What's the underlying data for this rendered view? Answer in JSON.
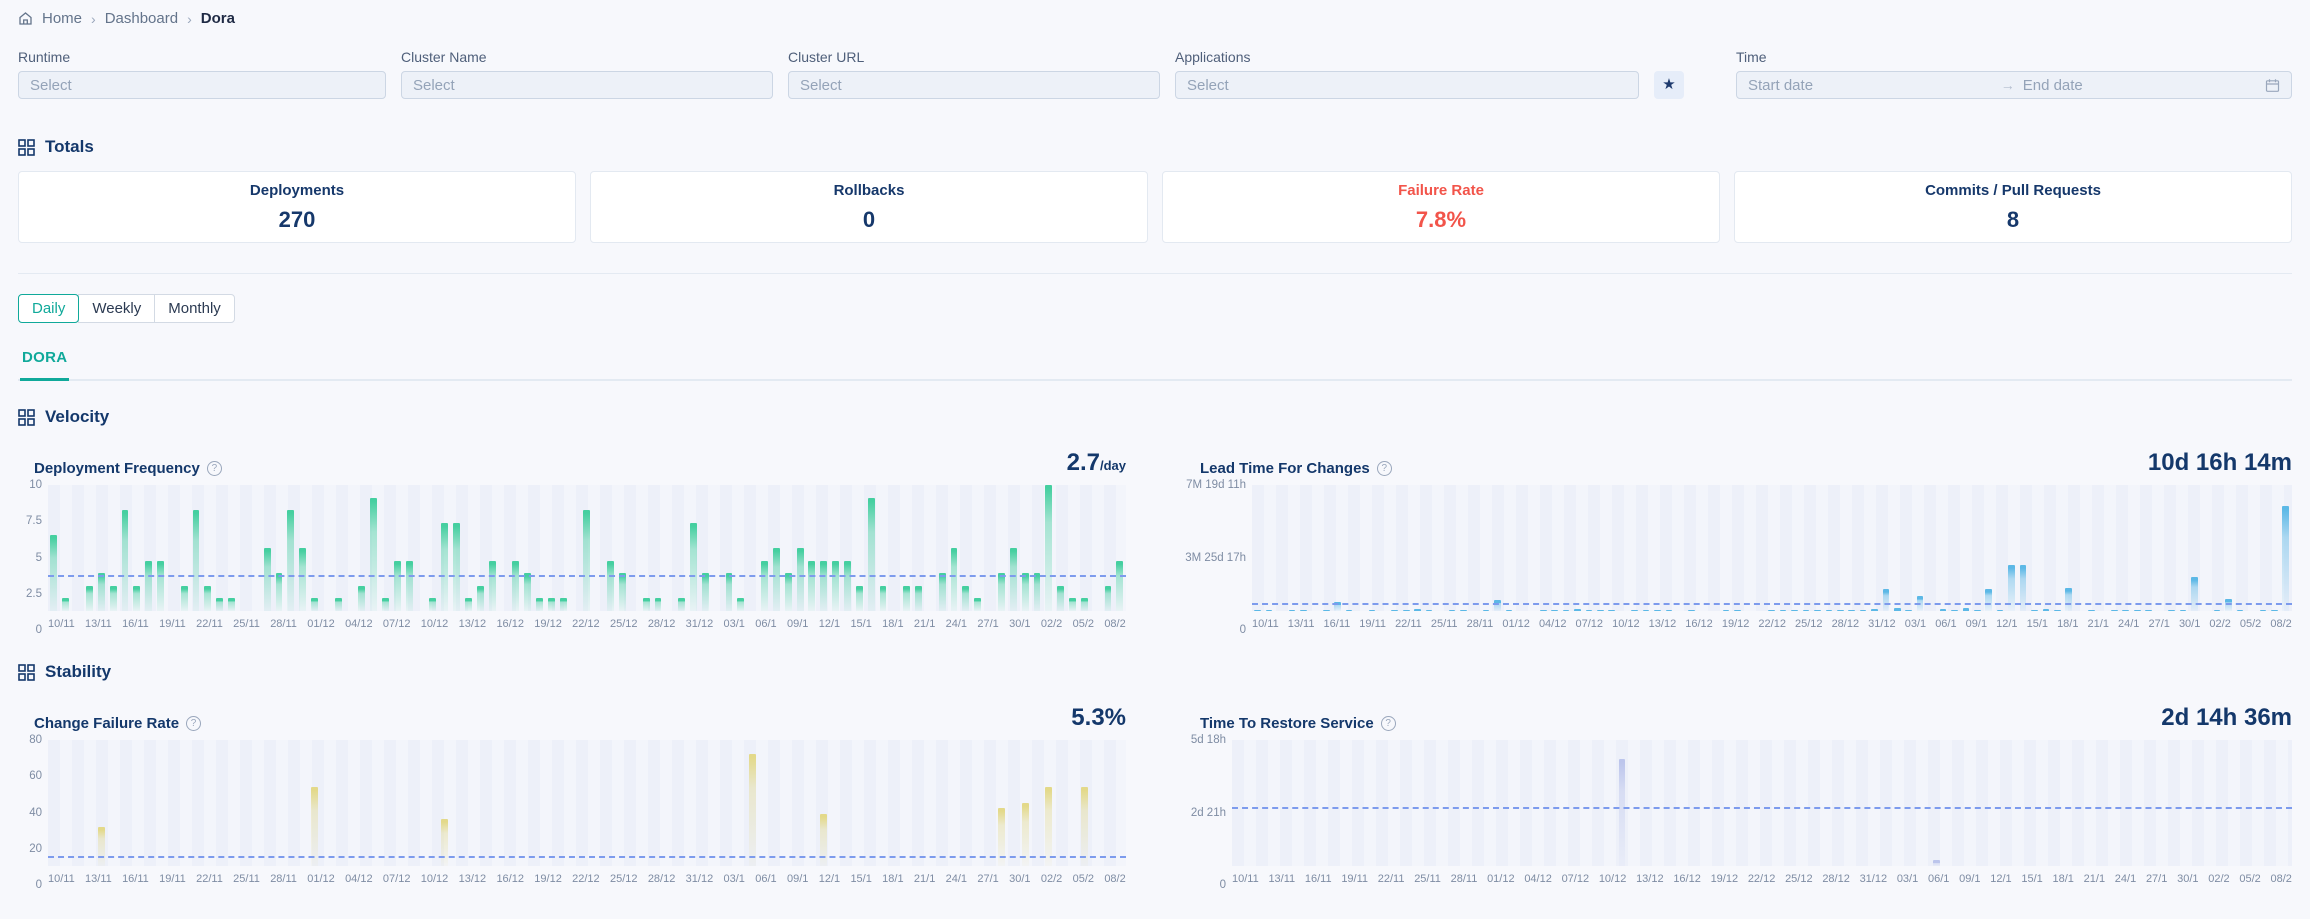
{
  "breadcrumb": {
    "home": "Home",
    "dashboard": "Dashboard",
    "current": "Dora"
  },
  "filters": {
    "runtime": {
      "label": "Runtime",
      "placeholder": "Select"
    },
    "cluster_name": {
      "label": "Cluster Name",
      "placeholder": "Select"
    },
    "cluster_url": {
      "label": "Cluster URL",
      "placeholder": "Select"
    },
    "applications": {
      "label": "Applications",
      "placeholder": "Select"
    },
    "time": {
      "label": "Time",
      "start_placeholder": "Start date",
      "end_placeholder": "End date"
    }
  },
  "icons": {
    "star": "★",
    "info": "?",
    "breadcrumb_sep": "›",
    "range_arrow": "→"
  },
  "totals": {
    "title": "Totals",
    "cards": [
      {
        "label": "Deployments",
        "value": "270",
        "color": "#16386b"
      },
      {
        "label": "Rollbacks",
        "value": "0",
        "color": "#16386b"
      },
      {
        "label": "Failure Rate",
        "value": "7.8%",
        "color": "#f2544a"
      },
      {
        "label": "Commits / Pull Requests",
        "value": "8",
        "color": "#16386b"
      }
    ]
  },
  "granularity": {
    "options": [
      "Daily",
      "Weekly",
      "Monthly"
    ],
    "active": "Daily"
  },
  "tabs": {
    "dora": "DORA"
  },
  "sections": {
    "velocity": "Velocity",
    "stability": "Stability"
  },
  "colors": {
    "accent_teal": "#10a99a",
    "navy": "#16386b",
    "red": "#f2544a",
    "avg_line": "#7d9bed",
    "page_bg": "#f7f8fc",
    "df_bar": "#45cfa0",
    "lt_bar": "#5cb8e6",
    "cfr_bar": "#e3d98a",
    "ttrs_bar": "#bcc5ec"
  },
  "chart_data": [
    {
      "id": "deployment-frequency",
      "type": "bar",
      "section": "Velocity",
      "title": "Deployment Frequency",
      "value": "2.7",
      "value_unit": "/day",
      "unit": "deployments/day",
      "ymax": 10,
      "avg": 2.7,
      "yticks": [
        {
          "label": "0",
          "v": 0
        },
        {
          "label": "2.5",
          "v": 2.5
        },
        {
          "label": "5",
          "v": 5
        },
        {
          "label": "7.5",
          "v": 7.5
        },
        {
          "label": "10",
          "v": 10
        }
      ],
      "bar_top": "#45cfa0",
      "bar_mid": "rgba(69,207,160,0.45)",
      "bar_bottom": "rgba(69,207,160,0.06)",
      "xlabels": [
        "10/11",
        "13/11",
        "16/11",
        "19/11",
        "22/11",
        "25/11",
        "28/11",
        "01/12",
        "04/12",
        "07/12",
        "10/12",
        "13/12",
        "16/12",
        "19/12",
        "22/12",
        "25/12",
        "28/12",
        "31/12",
        "03/1",
        "06/1",
        "09/1",
        "12/1",
        "15/1",
        "18/1",
        "21/1",
        "24/1",
        "27/1",
        "30/1",
        "02/2",
        "05/2",
        "08/2"
      ],
      "values": [
        6,
        1,
        0,
        2,
        3,
        2,
        8,
        2,
        4,
        4,
        0,
        2,
        8,
        2,
        1,
        1,
        0,
        0,
        5,
        3,
        8,
        5,
        1,
        0,
        1,
        0,
        2,
        9,
        1,
        4,
        4,
        0,
        1,
        7,
        7,
        1,
        2,
        4,
        0,
        4,
        3,
        1,
        1,
        1,
        0,
        8,
        0,
        4,
        3,
        0,
        1,
        1,
        0,
        1,
        7,
        3,
        0,
        3,
        1,
        0,
        4,
        5,
        3,
        5,
        4,
        4,
        4,
        4,
        2,
        9,
        2,
        0,
        2,
        2,
        0,
        3,
        5,
        2,
        1,
        0,
        3,
        5,
        3,
        3,
        10,
        2,
        1,
        1,
        0,
        2,
        4
      ]
    },
    {
      "id": "lead-time",
      "type": "bar",
      "section": "Velocity",
      "title": "Lead Time For Changes",
      "value": "10d 16h 14m",
      "value_unit": "",
      "unit": "days",
      "ymax": 232,
      "avg": 10.7,
      "yticks": [
        {
          "label": "0",
          "v": 0
        },
        {
          "label": "3M 25d 17h",
          "v": 116
        },
        {
          "label": "7M 19d 11h",
          "v": 232
        }
      ],
      "bar_top": "#5cb8e6",
      "bar_mid": "rgba(92,184,230,0.45)",
      "bar_bottom": "rgba(92,184,230,0.06)",
      "xlabels": [
        "10/11",
        "13/11",
        "16/11",
        "19/11",
        "22/11",
        "25/11",
        "28/11",
        "01/12",
        "04/12",
        "07/12",
        "10/12",
        "13/12",
        "16/12",
        "19/12",
        "22/12",
        "25/12",
        "28/12",
        "31/12",
        "03/1",
        "06/1",
        "09/1",
        "12/1",
        "15/1",
        "18/1",
        "21/1",
        "24/1",
        "27/1",
        "30/1",
        "02/2",
        "05/2",
        "08/2"
      ],
      "values": [
        2,
        1,
        0,
        1,
        1,
        0,
        2,
        17,
        1,
        0,
        1,
        0,
        1,
        2,
        3,
        1,
        0,
        1,
        1,
        0,
        1,
        20,
        2,
        0,
        0,
        1,
        1,
        1,
        4,
        1,
        1,
        2,
        0,
        1,
        1,
        1,
        1,
        0,
        1,
        0,
        0,
        1,
        1,
        0,
        0,
        1,
        2,
        1,
        1,
        1,
        2,
        2,
        1,
        1,
        3,
        41,
        5,
        1,
        27,
        0,
        3,
        2,
        5,
        1,
        40,
        1,
        84,
        84,
        1,
        4,
        1,
        43,
        0,
        1,
        0,
        1,
        1,
        1,
        1,
        0,
        1,
        1,
        63,
        0,
        1,
        23,
        1,
        0,
        1,
        1,
        194
      ]
    },
    {
      "id": "change-failure-rate",
      "type": "bar",
      "section": "Stability",
      "title": "Change Failure Rate",
      "value": "5.3%",
      "value_unit": "",
      "unit": "%",
      "ymax": 80,
      "avg": 5.3,
      "yticks": [
        {
          "label": "0",
          "v": 0
        },
        {
          "label": "20",
          "v": 20
        },
        {
          "label": "40",
          "v": 40
        },
        {
          "label": "60",
          "v": 60
        },
        {
          "label": "80",
          "v": 80
        }
      ],
      "bar_top": "#e3d98a",
      "bar_mid": "rgba(227,217,138,0.40)",
      "bar_bottom": "rgba(227,217,138,0.06)",
      "xlabels": [
        "10/11",
        "13/11",
        "16/11",
        "19/11",
        "22/11",
        "25/11",
        "28/11",
        "01/12",
        "04/12",
        "07/12",
        "10/12",
        "13/12",
        "16/12",
        "19/12",
        "22/12",
        "25/12",
        "28/12",
        "31/12",
        "03/1",
        "06/1",
        "09/1",
        "12/1",
        "15/1",
        "18/1",
        "21/1",
        "24/1",
        "27/1",
        "30/1",
        "02/2",
        "05/2",
        "08/2"
      ],
      "values": [
        0,
        0,
        0,
        0,
        25,
        0,
        0,
        0,
        0,
        0,
        0,
        0,
        0,
        0,
        0,
        0,
        0,
        0,
        0,
        0,
        0,
        0,
        50,
        0,
        0,
        0,
        0,
        0,
        0,
        0,
        0,
        0,
        0,
        30,
        0,
        0,
        0,
        0,
        0,
        0,
        0,
        0,
        0,
        0,
        0,
        0,
        0,
        0,
        0,
        0,
        0,
        0,
        0,
        0,
        0,
        0,
        0,
        0,
        0,
        71,
        0,
        0,
        0,
        0,
        0,
        33,
        0,
        0,
        0,
        0,
        0,
        0,
        0,
        0,
        0,
        0,
        0,
        0,
        0,
        0,
        37,
        0,
        40,
        0,
        50,
        0,
        0,
        50,
        0,
        0,
        0
      ]
    },
    {
      "id": "time-to-restore",
      "type": "bar",
      "section": "Stability",
      "title": "Time To Restore Service",
      "value": "2d 14h 36m",
      "value_unit": "",
      "unit": "hours",
      "ymax": 138,
      "avg": 62.6,
      "yticks": [
        {
          "label": "0",
          "v": 0
        },
        {
          "label": "2d 21h",
          "v": 69
        },
        {
          "label": "5d 18h",
          "v": 138
        }
      ],
      "bar_top": "#bcc5ec",
      "bar_mid": "rgba(188,197,236,0.45)",
      "bar_bottom": "rgba(188,197,236,0.08)",
      "xlabels": [
        "10/11",
        "13/11",
        "16/11",
        "19/11",
        "22/11",
        "25/11",
        "28/11",
        "01/12",
        "04/12",
        "07/12",
        "10/12",
        "13/12",
        "16/12",
        "19/12",
        "22/12",
        "25/12",
        "28/12",
        "31/12",
        "03/1",
        "06/1",
        "09/1",
        "12/1",
        "15/1",
        "18/1",
        "21/1",
        "24/1",
        "27/1",
        "30/1",
        "02/2",
        "05/2",
        "08/2"
      ],
      "values": [
        0,
        0,
        0,
        0,
        0,
        0,
        0,
        0,
        0,
        0,
        0,
        0,
        0,
        0,
        0,
        0,
        0,
        0,
        0,
        0,
        0,
        0,
        0,
        0,
        0,
        0,
        0,
        0,
        0,
        0,
        0,
        0,
        0,
        117,
        0,
        0,
        0,
        0,
        0,
        0,
        0,
        0,
        0,
        0,
        0,
        0,
        0,
        0,
        0,
        0,
        0,
        0,
        0,
        0,
        0,
        0,
        0,
        0,
        0,
        0,
        7,
        0,
        0,
        0,
        0,
        0,
        0,
        0,
        0,
        0,
        0,
        0,
        0,
        0,
        0,
        0,
        0,
        0,
        0,
        0,
        0,
        0,
        0,
        0,
        0,
        0,
        0,
        0,
        0,
        0,
        0
      ]
    }
  ]
}
